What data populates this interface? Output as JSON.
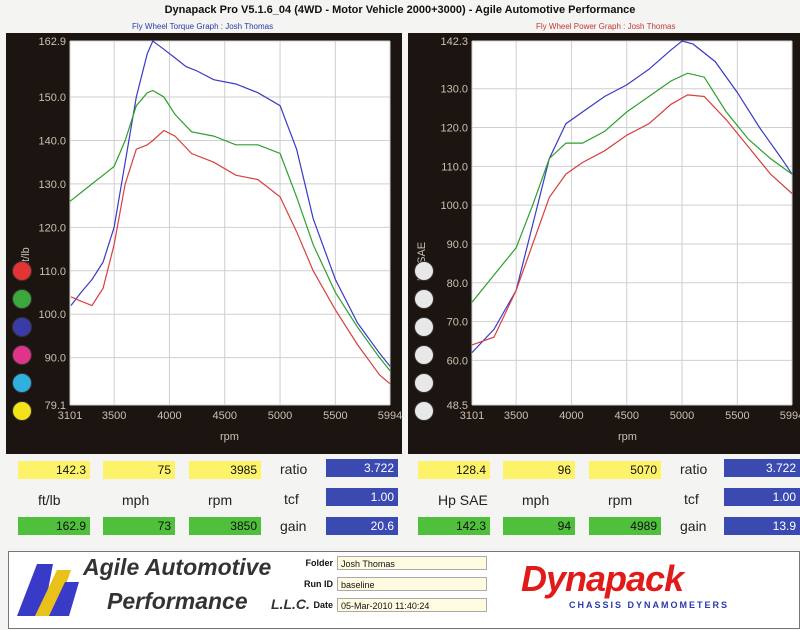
{
  "window_title": "Dynapack Pro V5.1.6_04 (4WD - Motor Vehicle 2000+3000) - Agile Automotive Performance",
  "chart_data": [
    {
      "type": "line",
      "title": "Fly Wheel Torque Graph : Josh Thomas",
      "xlabel": "rpm",
      "ylabel": "ft/lb",
      "xlim": [
        3101,
        5994
      ],
      "ylim": [
        79.1,
        162.9
      ],
      "xticks": [
        "3101",
        "3500",
        "4000",
        "4500",
        "5000",
        "5500",
        "5994"
      ],
      "yticks": [
        "162.9",
        "150.0",
        "140.0",
        "130.0",
        "120.0",
        "110.0",
        "100.0",
        "90.0",
        "79.1"
      ],
      "series": [
        {
          "color": "#3a3ac8",
          "points": [
            [
              3110,
              102
            ],
            [
              3200,
              105
            ],
            [
              3300,
              108
            ],
            [
              3400,
              112
            ],
            [
              3500,
              120
            ],
            [
              3600,
              135
            ],
            [
              3700,
              150
            ],
            [
              3800,
              160
            ],
            [
              3850,
              162.9
            ],
            [
              3950,
              161
            ],
            [
              4050,
              159
            ],
            [
              4150,
              157
            ],
            [
              4250,
              156
            ],
            [
              4400,
              154
            ],
            [
              4600,
              153
            ],
            [
              4800,
              151
            ],
            [
              5000,
              148
            ],
            [
              5150,
              138
            ],
            [
              5300,
              122
            ],
            [
              5500,
              108
            ],
            [
              5700,
              98
            ],
            [
              5900,
              91
            ],
            [
              5994,
              88
            ]
          ]
        },
        {
          "color": "#2e9e2e",
          "points": [
            [
              3101,
              126
            ],
            [
              3200,
              128
            ],
            [
              3300,
              130
            ],
            [
              3400,
              132
            ],
            [
              3500,
              134
            ],
            [
              3600,
              140
            ],
            [
              3700,
              148
            ],
            [
              3800,
              151
            ],
            [
              3850,
              151.5
            ],
            [
              3950,
              150
            ],
            [
              4050,
              146
            ],
            [
              4200,
              142
            ],
            [
              4400,
              141
            ],
            [
              4600,
              139
            ],
            [
              4800,
              139
            ],
            [
              5000,
              137
            ],
            [
              5150,
              127
            ],
            [
              5300,
              116
            ],
            [
              5500,
              105
            ],
            [
              5700,
              97
            ],
            [
              5900,
              90
            ],
            [
              5994,
              87
            ]
          ]
        },
        {
          "color": "#d84040",
          "points": [
            [
              3110,
              104
            ],
            [
              3200,
              103
            ],
            [
              3300,
              102
            ],
            [
              3400,
              106
            ],
            [
              3500,
              116
            ],
            [
              3600,
              130
            ],
            [
              3700,
              138
            ],
            [
              3800,
              139
            ],
            [
              3850,
              140
            ],
            [
              3950,
              142.3
            ],
            [
              4050,
              141
            ],
            [
              4200,
              137
            ],
            [
              4400,
              135
            ],
            [
              4600,
              132
            ],
            [
              4800,
              131
            ],
            [
              5000,
              127
            ],
            [
              5150,
              119
            ],
            [
              5300,
              110
            ],
            [
              5500,
              101
            ],
            [
              5700,
              93
            ],
            [
              5900,
              86
            ],
            [
              5994,
              84
            ]
          ]
        }
      ]
    },
    {
      "type": "line",
      "title": "Fly Wheel Power Graph : Josh Thomas",
      "xlabel": "rpm",
      "ylabel": "Hp SAE",
      "xlim": [
        3101,
        5994
      ],
      "ylim": [
        48.5,
        142.3
      ],
      "xticks": [
        "3101",
        "3500",
        "4000",
        "4500",
        "5000",
        "5500",
        "5994"
      ],
      "yticks": [
        "142.3",
        "130.0",
        "120.0",
        "110.0",
        "100.0",
        "90.0",
        "80.0",
        "70.0",
        "60.0",
        "48.5"
      ],
      "series": [
        {
          "color": "#3a3ac8",
          "points": [
            [
              3101,
              62
            ],
            [
              3300,
              68
            ],
            [
              3500,
              78
            ],
            [
              3650,
              95
            ],
            [
              3800,
              112
            ],
            [
              3950,
              121
            ],
            [
              4100,
              124
            ],
            [
              4300,
              128
            ],
            [
              4500,
              131
            ],
            [
              4700,
              135
            ],
            [
              4900,
              140
            ],
            [
              5000,
              142.3
            ],
            [
              5100,
              141.5
            ],
            [
              5300,
              137
            ],
            [
              5500,
              129
            ],
            [
              5700,
              120
            ],
            [
              5900,
              112
            ],
            [
              5994,
              108
            ]
          ]
        },
        {
          "color": "#2e9e2e",
          "points": [
            [
              3101,
              75
            ],
            [
              3300,
              82
            ],
            [
              3500,
              89
            ],
            [
              3650,
              100
            ],
            [
              3800,
              112
            ],
            [
              3950,
              116
            ],
            [
              4100,
              116
            ],
            [
              4300,
              119
            ],
            [
              4500,
              124
            ],
            [
              4700,
              128
            ],
            [
              4900,
              132
            ],
            [
              5050,
              134
            ],
            [
              5200,
              133
            ],
            [
              5400,
              124
            ],
            [
              5600,
              117
            ],
            [
              5800,
              112
            ],
            [
              5994,
              108
            ]
          ]
        },
        {
          "color": "#d84040",
          "points": [
            [
              3101,
              64
            ],
            [
              3300,
              66
            ],
            [
              3500,
              78
            ],
            [
              3650,
              90
            ],
            [
              3800,
              102
            ],
            [
              3950,
              108
            ],
            [
              4100,
              111
            ],
            [
              4300,
              114
            ],
            [
              4500,
              118
            ],
            [
              4700,
              121
            ],
            [
              4900,
              126
            ],
            [
              5050,
              128.4
            ],
            [
              5200,
              128
            ],
            [
              5400,
              122
            ],
            [
              5600,
              115
            ],
            [
              5800,
              108
            ],
            [
              5994,
              103
            ]
          ]
        }
      ]
    }
  ],
  "torque_stats": {
    "peak_value": "142.3",
    "peak_mph": "75",
    "peak_rpm": "3985",
    "unit_label": "ft/lb",
    "mph_label": "mph",
    "rpm_label": "rpm",
    "base_value": "162.9",
    "base_mph": "73",
    "base_rpm": "3850",
    "ratio_label": "ratio",
    "ratio_value": "3.722",
    "tcf_label": "tcf",
    "tcf_value": "1.00",
    "gain_label": "gain",
    "gain_value": "20.6"
  },
  "power_stats": {
    "peak_value": "128.4",
    "peak_mph": "96",
    "peak_rpm": "5070",
    "unit_label": "Hp SAE",
    "mph_label": "mph",
    "rpm_label": "rpm",
    "base_value": "142.3",
    "base_mph": "94",
    "base_rpm": "4989",
    "ratio_label": "ratio",
    "ratio_value": "3.722",
    "tcf_label": "tcf",
    "tcf_value": "1.00",
    "gain_label": "gain",
    "gain_value": "13.9"
  },
  "footer": {
    "logo_text": "AAP",
    "company_line1": "Agile Automotive",
    "company_line2": "Performance",
    "company_suffix": "L.L.C.",
    "folder_label": "Folder",
    "folder_value": "Josh Thomas",
    "runid_label": "Run ID",
    "runid_value": "baseline",
    "date_label": "Date",
    "date_value": "05-Mar-2010  11:40:24",
    "brand": "Dynapack",
    "brand_sub": "CHASSIS   DYNAMOMETERS"
  },
  "legend_dot_colors_left": [
    "#e33333",
    "#3aa83a",
    "#3a3aa8",
    "#e0338a",
    "#2fb0e0",
    "#f2e21a"
  ],
  "legend_dot_colors_right": [
    "#e8e8e8",
    "#e8e8e8",
    "#e8e8e8",
    "#e8e8e8",
    "#e8e8e8",
    "#e8e8e8"
  ]
}
